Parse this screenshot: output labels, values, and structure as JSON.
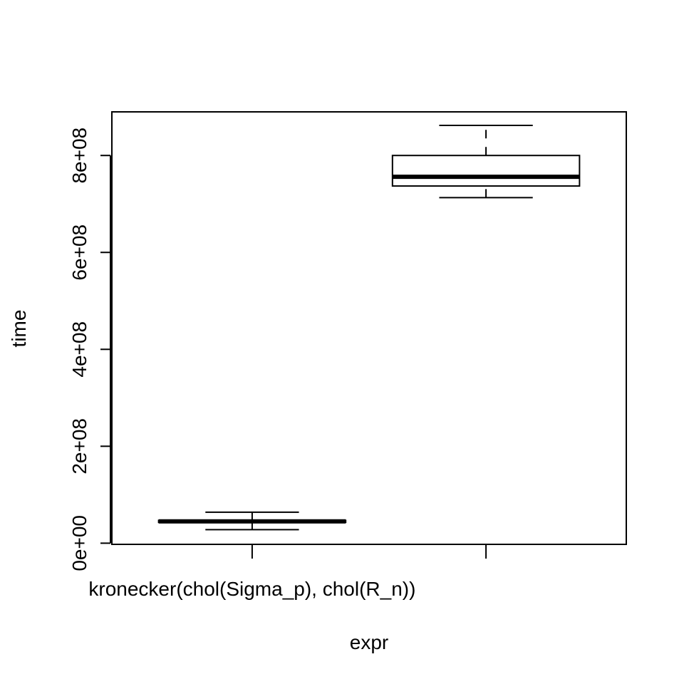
{
  "chart_data": {
    "type": "boxplot",
    "title": "",
    "xlabel": "expr",
    "ylabel": "time",
    "ylim": [
      -2400000,
      890000000
    ],
    "y_ticks": [
      0,
      200000000,
      400000000,
      600000000,
      800000000
    ],
    "y_tick_labels": [
      "0e+00",
      "2e+08",
      "4e+08",
      "6e+08",
      "8e+08"
    ],
    "categories": [
      "kronecker(chol(Sigma_p), chol(R_n))",
      ""
    ],
    "boxes": [
      {
        "category": "kronecker(chol(Sigma_p), chol(R_n))",
        "min": 28000000,
        "q1": 43000000,
        "median": 45000000,
        "q3": 47000000,
        "max": 64000000
      },
      {
        "category": "",
        "min": 713000000,
        "q1": 737000000,
        "median": 756000000,
        "q3": 800000000,
        "max": 862000000
      }
    ],
    "grid": false,
    "legend": "none"
  }
}
